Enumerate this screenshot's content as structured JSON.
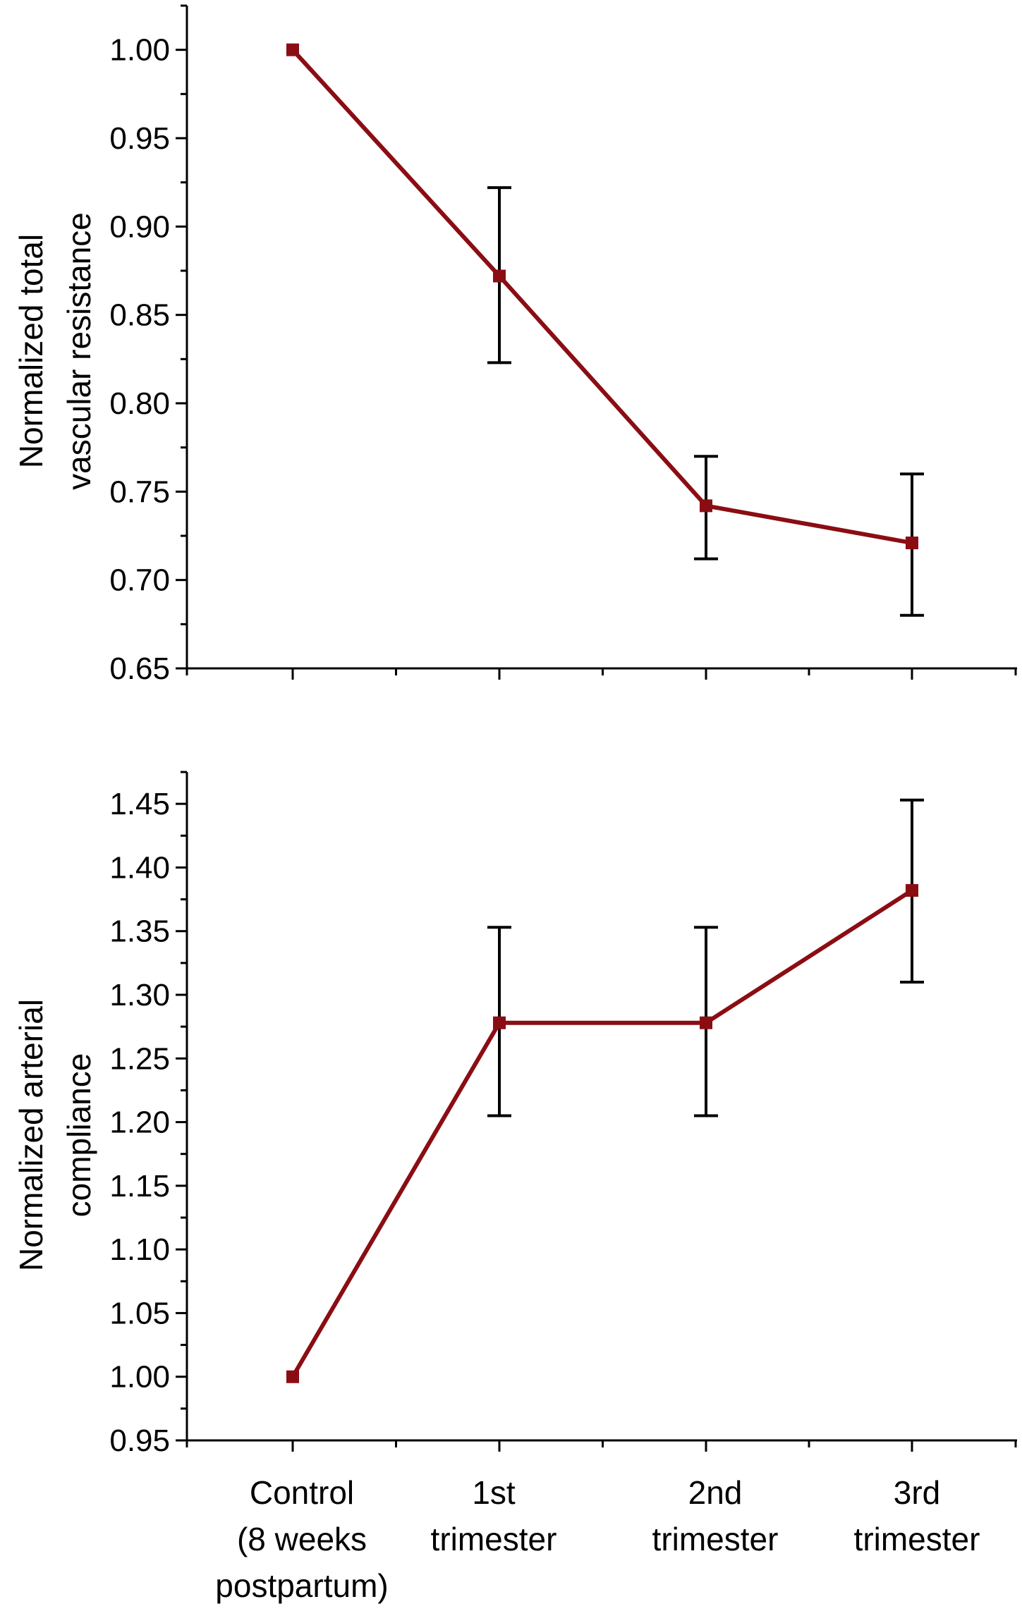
{
  "colors": {
    "series": "#8b0d14",
    "error_bar": "#000000",
    "axis": "#000000"
  },
  "chart_data": [
    {
      "type": "line",
      "ylabel_lines": [
        "Normalized total",
        "vascular resistance"
      ],
      "categories": [
        "Control (8 weeks postpartum)",
        "1st trimester",
        "2nd trimester",
        "3rd trimester"
      ],
      "values": [
        1.0,
        0.872,
        0.742,
        0.721
      ],
      "error_low": [
        null,
        0.823,
        0.712,
        0.68
      ],
      "error_high": [
        null,
        0.922,
        0.77,
        0.76
      ],
      "ylim": [
        0.65,
        1.025
      ],
      "yticks": [
        "0.65",
        "0.70",
        "0.75",
        "0.80",
        "0.85",
        "0.90",
        "0.95",
        "1.00"
      ],
      "grid": false
    },
    {
      "type": "line",
      "ylabel_lines": [
        "Normalized arterial",
        "compliance"
      ],
      "categories": [
        "Control (8 weeks postpartum)",
        "1st trimester",
        "2nd trimester",
        "3rd trimester"
      ],
      "values": [
        1.0,
        1.278,
        1.278,
        1.382
      ],
      "error_low": [
        null,
        1.205,
        1.205,
        1.31
      ],
      "error_high": [
        null,
        1.353,
        1.353,
        1.453
      ],
      "ylim": [
        0.95,
        1.475
      ],
      "yticks": [
        "0.95",
        "1.00",
        "1.05",
        "1.10",
        "1.15",
        "1.20",
        "1.25",
        "1.30",
        "1.35",
        "1.40",
        "1.45"
      ],
      "grid": false
    }
  ],
  "x_axis_labels": [
    [
      "Control",
      "(8 weeks",
      "postpartum)"
    ],
    [
      "1st",
      "trimester"
    ],
    [
      "2nd",
      "trimester"
    ],
    [
      "3rd",
      "trimester"
    ]
  ]
}
